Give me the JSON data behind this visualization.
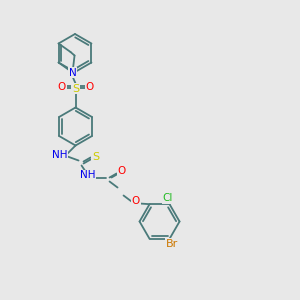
{
  "background_color": "#e8e8e8",
  "bond_color": "#4a7a7a",
  "atom_colors": {
    "N": "#0000ee",
    "O": "#ff0000",
    "S": "#cccc00",
    "Cl": "#22bb22",
    "Br": "#cc7700",
    "C": "#4a7a7a"
  },
  "figsize": [
    3.0,
    3.0
  ],
  "dpi": 100
}
